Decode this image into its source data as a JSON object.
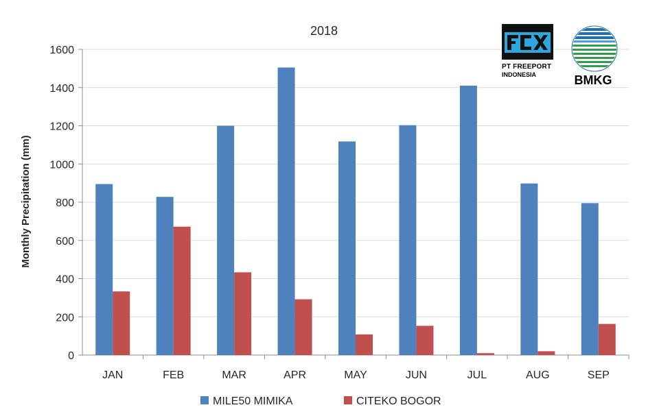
{
  "chart_data": {
    "type": "bar",
    "title": "2018",
    "xlabel": "",
    "ylabel": "Monthly Precipitation (mm)",
    "ylim": [
      0,
      1600
    ],
    "yticks": [
      0,
      200,
      400,
      600,
      800,
      1000,
      1200,
      1400,
      1600
    ],
    "grid": true,
    "legend_position": "bottom",
    "categories": [
      "JAN",
      "FEB",
      "MAR",
      "APR",
      "MAY",
      "JUN",
      "JUL",
      "AUG",
      "SEP"
    ],
    "series": [
      {
        "name": "MILE50 MIMIKA",
        "color": "#4f81bd",
        "values": [
          895,
          828,
          1200,
          1505,
          1118,
          1203,
          1410,
          898,
          795
        ]
      },
      {
        "name": "CITEKO BOGOR",
        "color": "#c0504d",
        "values": [
          333,
          672,
          433,
          292,
          108,
          153,
          10,
          20,
          163
        ]
      }
    ]
  },
  "logos": {
    "freeport": {
      "line1": "PT FREEPORT",
      "line2": "INDONESIA",
      "icon": "freeport-fcx-logo"
    },
    "bmkg": {
      "text": "BMKG",
      "icon": "bmkg-globe-logo"
    }
  }
}
